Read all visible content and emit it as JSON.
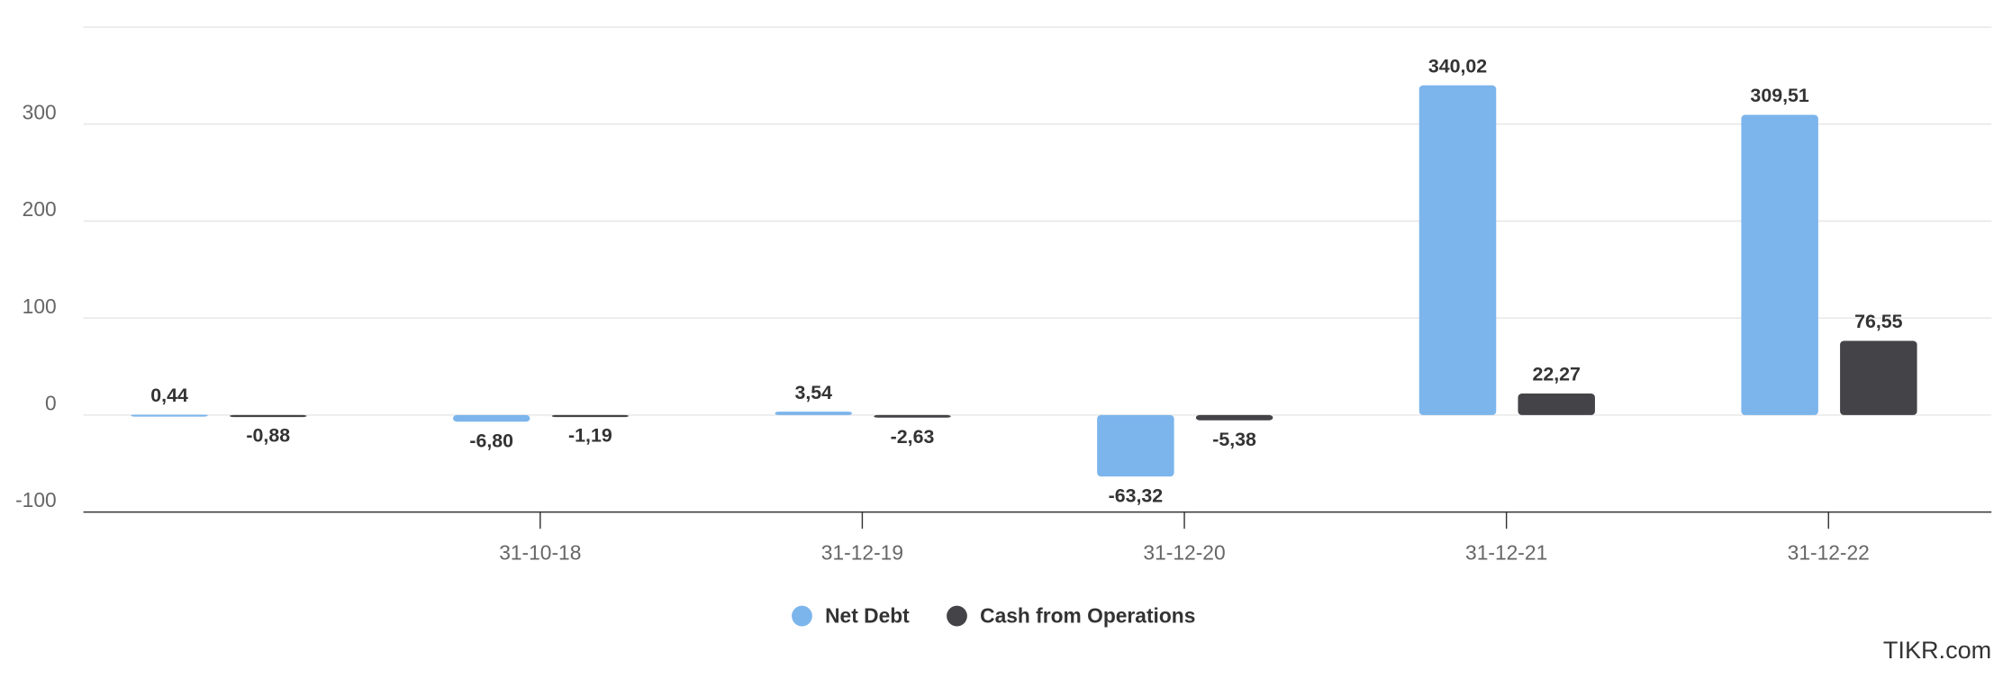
{
  "chart_data": {
    "type": "bar",
    "categories": [
      null,
      "31-10-18",
      "31-12-19",
      "31-12-20",
      "31-12-21",
      "31-12-22"
    ],
    "series": [
      {
        "name": "Net Debt",
        "color": "#7cb5ec",
        "values": [
          0.44,
          -6.8,
          3.54,
          -63.32,
          340.02,
          309.51
        ],
        "value_labels": [
          "0,44",
          "-6,80",
          "3,54",
          "-63,32",
          "340,02",
          "309,51"
        ]
      },
      {
        "name": "Cash from Operations",
        "color": "#434348",
        "values": [
          -0.88,
          -1.19,
          -2.63,
          -5.38,
          22.27,
          76.55
        ],
        "value_labels": [
          "-0,88",
          "-1,19",
          "-2,63",
          "-5,38",
          "22,27",
          "76,55"
        ]
      }
    ],
    "ylim": [
      -100,
      400
    ],
    "yticks": [
      -100,
      0,
      100,
      200,
      300
    ],
    "grid": true,
    "legend": "bottom",
    "source": "TIKR.com"
  }
}
